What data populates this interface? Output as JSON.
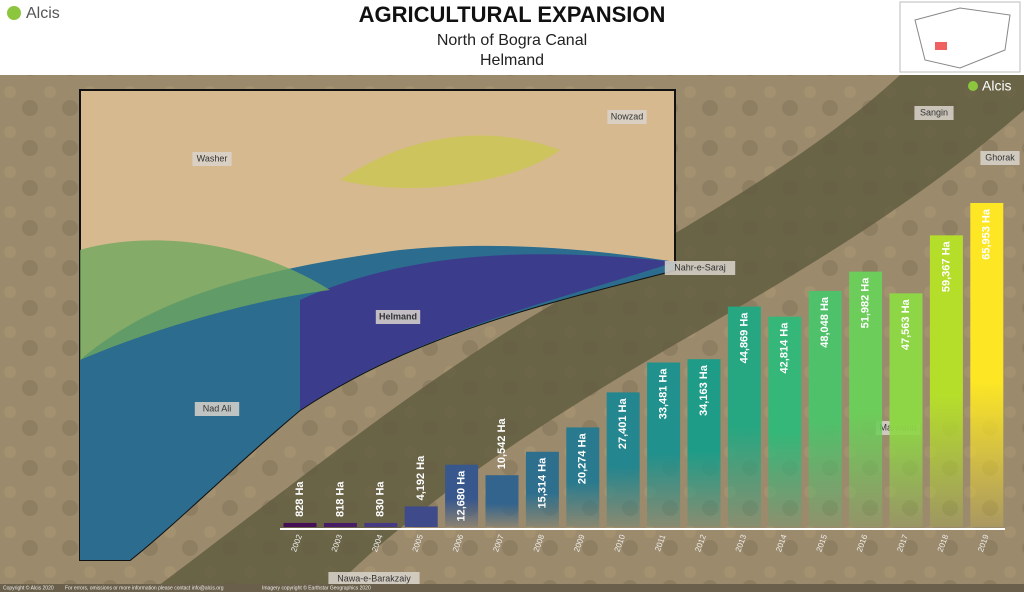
{
  "header": {
    "logo": "Alcis",
    "title": "AGRICULTURAL EXPANSION",
    "subtitle": "North of Bogra Canal",
    "region": "Helmand",
    "map_logo": "Alcis"
  },
  "places": [
    "Washer",
    "Nowzad",
    "Helmand",
    "Nad Ali",
    "Nahr-e-Saraj",
    "Sangin",
    "Ghorak",
    "Marwand",
    "Nawa-e-Barakzaiy"
  ],
  "footer": [
    "Copyright © Alcis 2020",
    "For errors, omissions or more information please contact info@alcis.org",
    "Imagery copyright © Earthstar Geographics 2020"
  ],
  "chart_data": {
    "type": "bar",
    "categories": [
      "2002",
      "2003",
      "2004",
      "2005",
      "2006",
      "2007",
      "2008",
      "2009",
      "2010",
      "2011",
      "2012",
      "2013",
      "2014",
      "2015",
      "2016",
      "2017",
      "2018",
      "2019"
    ],
    "values": [
      828,
      818,
      830,
      4192,
      12680,
      10542,
      15314,
      20274,
      27401,
      33481,
      34163,
      44869,
      42814,
      48048,
      51982,
      47563,
      59367,
      65953
    ],
    "value_labels": [
      "828 Ha",
      "818 Ha",
      "830 Ha",
      "4,192 Ha",
      "12,680 Ha",
      "10,542 Ha",
      "15,314 Ha",
      "20,274 Ha",
      "27,401 Ha",
      "33,481 Ha",
      "34,163 Ha",
      "44,869 Ha",
      "42,814 Ha",
      "48,048 Ha",
      "51,982 Ha",
      "47,563 Ha",
      "59,367 Ha",
      "65,953 Ha"
    ],
    "colors": [
      "#440f54",
      "#471d67",
      "#463a82",
      "#3f4a8a",
      "#38578c",
      "#33648d",
      "#2e6f8e",
      "#297a8e",
      "#24868e",
      "#20918c",
      "#1f9c88",
      "#27a781",
      "#35b779",
      "#4fc16b",
      "#6ccd5a",
      "#8ed645",
      "#b5de2b",
      "#fde725"
    ]
  }
}
